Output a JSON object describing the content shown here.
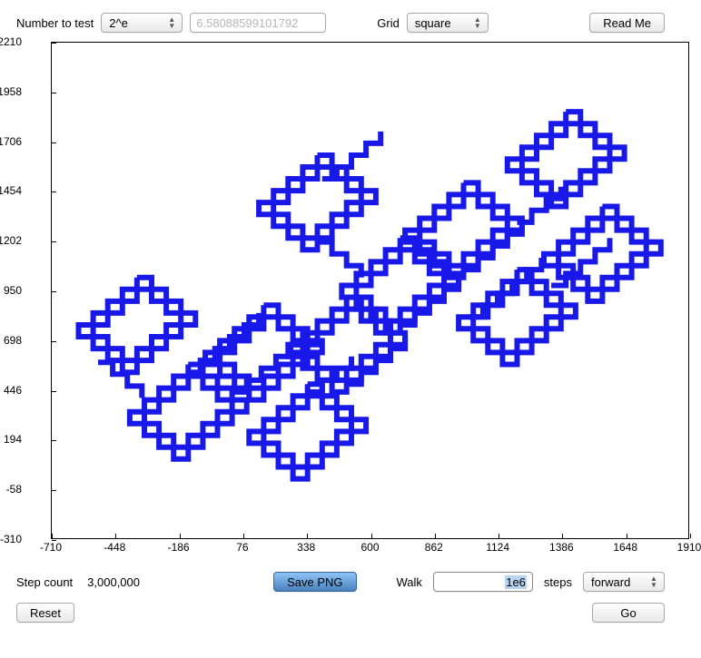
{
  "top": {
    "number_to_test_label": "Number to test",
    "number_select_value": "2^e",
    "number_value": "6.58088599101792",
    "grid_label": "Grid",
    "grid_select_value": "square",
    "readme_label": "Read Me"
  },
  "chart": {
    "xlim": [
      -710,
      1910
    ],
    "ylim": [
      -310,
      2210
    ],
    "xticks": [
      -710,
      -448,
      -186,
      76,
      338,
      600,
      862,
      1124,
      1386,
      1648,
      1910
    ],
    "yticks": [
      -310,
      -58,
      194,
      446,
      698,
      950,
      1202,
      1454,
      1706,
      1958,
      2210
    ],
    "background_color": "#ffffff",
    "axis_color": "#000000",
    "tick_fontsize": 12,
    "walk": {
      "stroke_color": "#1818e8",
      "stroke_width": 6,
      "step": 60,
      "diamond_scale": 3,
      "centers": [
        [
          -360,
          780
        ],
        [
          -150,
          340
        ],
        [
          160,
          640
        ],
        [
          340,
          240
        ],
        [
          500,
          680
        ],
        [
          720,
          980
        ],
        [
          980,
          1260
        ],
        [
          1400,
          1620
        ],
        [
          1200,
          820
        ],
        [
          1550,
          1140
        ],
        [
          380,
          1400
        ]
      ],
      "bridges": [
        [
          [
            -520,
            590
          ],
          [
            -320,
            390
          ]
        ],
        [
          [
            -160,
            540
          ],
          [
            150,
            830
          ]
        ],
        [
          [
            30,
            440
          ],
          [
            330,
            740
          ]
        ],
        [
          [
            340,
            440
          ],
          [
            540,
            640
          ]
        ],
        [
          [
            500,
            480
          ],
          [
            720,
            700
          ]
        ],
        [
          [
            720,
            780
          ],
          [
            980,
            1040
          ]
        ],
        [
          [
            980,
            1060
          ],
          [
            1200,
            1280
          ]
        ],
        [
          [
            1200,
            1300
          ],
          [
            1400,
            1500
          ]
        ],
        [
          [
            1000,
            820
          ],
          [
            1300,
            1120
          ]
        ],
        [
          [
            1340,
            980
          ],
          [
            1560,
            1200
          ]
        ],
        [
          [
            380,
            1200
          ],
          [
            580,
            1000
          ]
        ],
        [
          [
            400,
            1520
          ],
          [
            650,
            1770
          ]
        ]
      ]
    }
  },
  "bottom": {
    "step_count_label": "Step count",
    "step_count_value": "3,000,000",
    "save_png_label": "Save PNG",
    "walk_label": "Walk",
    "walk_value": "1e6",
    "steps_label": "steps",
    "direction_select_value": "forward",
    "reset_label": "Reset",
    "go_label": "Go"
  }
}
